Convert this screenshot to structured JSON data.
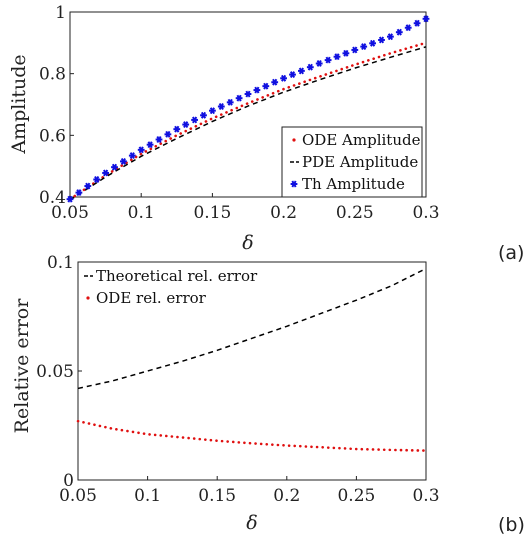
{
  "chart_data": [
    {
      "type": "line",
      "panel_label": "(a)",
      "xlabel": "δ",
      "ylabel": "Amplitude",
      "xlim": [
        0.05,
        0.3
      ],
      "ylim": [
        0.4,
        1.0
      ],
      "x_ticks": [
        "0.05",
        "0.1",
        "0.15",
        "0.2",
        "0.25",
        "0.3"
      ],
      "y_ticks": [
        "0.4",
        "0.6",
        "0.8",
        "1"
      ],
      "x_tick_values": [
        0.05,
        0.1,
        0.15,
        0.2,
        0.25,
        0.3
      ],
      "y_tick_values": [
        0.4,
        0.6,
        0.8,
        1.0
      ],
      "legend_position": "bottom-right",
      "series": [
        {
          "name": "ODE Amplitude",
          "style": "dotted",
          "color": "#e01010",
          "x": [
            0.05,
            0.075,
            0.1,
            0.125,
            0.15,
            0.175,
            0.2,
            0.225,
            0.25,
            0.275,
            0.3
          ],
          "values": [
            0.393,
            0.47,
            0.54,
            0.6,
            0.655,
            0.704,
            0.75,
            0.79,
            0.829,
            0.866,
            0.9
          ]
        },
        {
          "name": "PDE Amplitude",
          "style": "dashed",
          "color": "#000000",
          "x": [
            0.05,
            0.075,
            0.1,
            0.125,
            0.15,
            0.175,
            0.2,
            0.225,
            0.25,
            0.275,
            0.3
          ],
          "values": [
            0.39,
            0.465,
            0.532,
            0.59,
            0.645,
            0.695,
            0.74,
            0.78,
            0.818,
            0.853,
            0.887
          ]
        },
        {
          "name": "Th Amplitude",
          "style": "markers",
          "color": "#1010e0",
          "x": [
            0.05,
            0.075,
            0.1,
            0.125,
            0.15,
            0.175,
            0.2,
            0.225,
            0.25,
            0.275,
            0.3
          ],
          "values": [
            0.393,
            0.478,
            0.553,
            0.62,
            0.68,
            0.734,
            0.785,
            0.833,
            0.877,
            0.92,
            0.978
          ]
        }
      ]
    },
    {
      "type": "line",
      "panel_label": "(b)",
      "xlabel": "δ",
      "ylabel": "Relative error",
      "xlim": [
        0.05,
        0.3
      ],
      "ylim": [
        0,
        0.1
      ],
      "x_ticks": [
        "0.05",
        "0.1",
        "0.15",
        "0.2",
        "0.25",
        "0.3"
      ],
      "y_ticks": [
        "0",
        "0.05",
        "0.1"
      ],
      "x_tick_values": [
        0.05,
        0.1,
        0.15,
        0.2,
        0.25,
        0.3
      ],
      "y_tick_values": [
        0,
        0.05,
        0.1
      ],
      "legend_position": "top-left",
      "series": [
        {
          "name": "Theoretical rel. error",
          "style": "dashed",
          "color": "#000000",
          "x": [
            0.05,
            0.075,
            0.1,
            0.125,
            0.15,
            0.175,
            0.2,
            0.225,
            0.25,
            0.275,
            0.3
          ],
          "values": [
            0.042,
            0.0455,
            0.05,
            0.0545,
            0.0595,
            0.065,
            0.0705,
            0.0765,
            0.0825,
            0.089,
            0.097
          ]
        },
        {
          "name": "ODE rel. error",
          "style": "dotted",
          "color": "#e01010",
          "x": [
            0.05,
            0.075,
            0.1,
            0.125,
            0.15,
            0.175,
            0.2,
            0.225,
            0.25,
            0.275,
            0.3
          ],
          "values": [
            0.027,
            0.0235,
            0.021,
            0.0195,
            0.018,
            0.0168,
            0.0158,
            0.015,
            0.0142,
            0.0138,
            0.0135
          ]
        }
      ]
    }
  ]
}
